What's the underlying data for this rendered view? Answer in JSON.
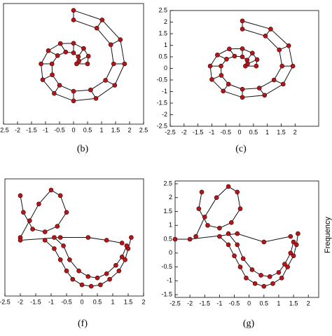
{
  "chart_data": [
    {
      "type": "graph",
      "caption": "(b)",
      "xlim": [
        -2.5,
        2.5
      ],
      "xticks": [
        -2.5,
        -2,
        -1.5,
        -1,
        -0.5,
        0,
        0.5,
        1,
        1.5,
        2,
        2.5
      ],
      "ylim": [
        -2.2,
        2.2
      ],
      "ladder": true,
      "lines": [
        {
          "x": [
            0.5,
            0.53,
            0.36,
            0,
            -0.47,
            -0.9,
            -1.16,
            -1.1,
            -0.69,
            0,
            0.8,
            1.47,
            1.82,
            1.67,
            1.02,
            0
          ],
          "y": [
            0,
            0.28,
            0.56,
            0.75,
            0.74,
            0.48,
            0,
            -0.58,
            -1.08,
            -1.35,
            -1.26,
            -0.78,
            0,
            0.88,
            1.6,
            1.95
          ]
        },
        {
          "x": [
            0.11,
            0.19,
            0.17,
            0,
            -0.28,
            -0.57,
            -0.77,
            -0.76,
            -0.5,
            0,
            0.61,
            1.14,
            1.43,
            1.33,
            0.83,
            0
          ],
          "y": [
            0,
            0.1,
            0.26,
            0.4,
            0.43,
            0.3,
            0,
            -0.4,
            -0.78,
            -1.0,
            -0.95,
            -0.6,
            0,
            0.7,
            1.3,
            1.6
          ]
        }
      ]
    },
    {
      "type": "graph",
      "caption": "(c)",
      "xlim": [
        -2.5,
        2.85
      ],
      "xticks": [
        -2.5,
        -2,
        -1.5,
        -1,
        -0.5,
        0,
        0.5,
        1,
        1.5,
        2
      ],
      "ylim": [
        -2.5,
        2.5
      ],
      "yticks": [
        -2.5,
        -2,
        -1.5,
        -1,
        -0.5,
        0,
        0.5,
        1,
        1.5,
        2,
        2.5
      ],
      "ladder": true,
      "lines": [
        {
          "x": [
            0.6,
            0.63,
            0.46,
            0.1,
            -0.37,
            -0.8,
            -1.06,
            -1.0,
            -0.59,
            0.1,
            0.9,
            1.57,
            1.92,
            1.77,
            1.12,
            0.1
          ],
          "y": [
            0.1,
            0.38,
            0.66,
            0.85,
            0.84,
            0.58,
            0.1,
            -0.48,
            -0.98,
            -1.25,
            -1.16,
            -0.68,
            0.1,
            0.98,
            1.7,
            2.05
          ]
        },
        {
          "x": [
            0.21,
            0.29,
            0.27,
            0.1,
            -0.18,
            -0.47,
            -0.67,
            -0.66,
            -0.4,
            0.1,
            0.71,
            1.24,
            1.53,
            1.43,
            0.93,
            0.1
          ],
          "y": [
            0.1,
            0.2,
            0.36,
            0.5,
            0.53,
            0.4,
            0.1,
            -0.3,
            -0.68,
            -0.9,
            -0.85,
            -0.5,
            0.1,
            0.8,
            1.4,
            1.7
          ]
        }
      ]
    },
    {
      "type": "graph",
      "caption": "(f)",
      "xlim": [
        -2.5,
        2
      ],
      "xticks": [
        -2.5,
        -2,
        -1.5,
        -1,
        -0.5,
        0,
        0.5,
        1,
        1.5,
        2
      ],
      "ylim": [
        -1.5,
        2.7
      ],
      "ladder": false,
      "lines": [
        {
          "x": [
            -2,
            -1.7,
            -1.4,
            -1.0,
            -0.7,
            -0.5,
            -0.8,
            -1.2,
            -1.6,
            -1.9,
            -2.0
          ],
          "y": [
            0.6,
            1.2,
            1.8,
            2.3,
            2.1,
            1.5,
            1.0,
            0.8,
            0.9,
            1.5,
            2.1
          ]
        },
        {
          "x": [
            -1.2,
            -0.9,
            -0.7,
            -0.5,
            -0.3,
            0,
            0.3,
            0.6,
            0.9,
            1.2,
            1.4,
            1.5,
            1.6
          ],
          "y": [
            0.5,
            0.2,
            -0.2,
            -0.6,
            -0.9,
            -1.1,
            -1.15,
            -1.1,
            -0.9,
            -0.6,
            -0.2,
            0.2,
            0.6
          ]
        },
        {
          "x": [
            -0.9,
            -0.6,
            -0.4,
            -0.1,
            0.2,
            0.5,
            0.8,
            1.1,
            1.3,
            1.45
          ],
          "y": [
            0.6,
            0.3,
            -0.2,
            -0.6,
            -0.8,
            -0.85,
            -0.7,
            -0.4,
            -0.1,
            0.3
          ]
        },
        {
          "x": [
            -2,
            -0.7,
            0.2,
            0.8,
            1.3
          ],
          "y": [
            0.5,
            0.6,
            0.6,
            0.5,
            0.4
          ]
        }
      ]
    },
    {
      "type": "graph",
      "caption": "(g)",
      "xlim": [
        -2.5,
        2.35
      ],
      "xticks": [
        -2.5,
        -2,
        -1.5,
        -1,
        -0.5,
        0,
        0.5,
        1,
        1.5,
        2
      ],
      "ylim": [
        -1.6,
        2.6
      ],
      "yticks": [
        -1.5,
        -1,
        -0.5,
        0,
        0.5,
        1,
        1.5,
        2,
        2.5
      ],
      "ladder": false,
      "lines": [
        {
          "x": [
            -1.8,
            -1.5,
            -1.1,
            -0.7,
            -0.4,
            -0.3,
            -0.6,
            -1.0,
            -1.4,
            -1.7,
            -1.6
          ],
          "y": [
            0.6,
            1.3,
            2.0,
            2.4,
            2.2,
            1.6,
            1.1,
            0.9,
            1.0,
            1.6,
            2.2
          ]
        },
        {
          "x": [
            -1.0,
            -0.7,
            -0.5,
            -0.3,
            -0.1,
            0.2,
            0.5,
            0.8,
            1.1,
            1.3,
            1.5,
            1.6,
            1.65
          ],
          "y": [
            0.6,
            0.3,
            -0.1,
            -0.5,
            -0.9,
            -1.1,
            -1.2,
            -1.1,
            -0.9,
            -0.5,
            -0.1,
            0.3,
            0.7
          ]
        },
        {
          "x": [
            -0.7,
            -0.4,
            -0.2,
            0.1,
            0.4,
            0.7,
            1.0,
            1.2,
            1.4,
            1.5
          ],
          "y": [
            0.7,
            0.3,
            -0.2,
            -0.6,
            -0.8,
            -0.85,
            -0.7,
            -0.4,
            0,
            0.4
          ]
        },
        {
          "x": [
            -2.5,
            -2.0,
            -0.4,
            0.5,
            1.4
          ],
          "y": [
            0.5,
            0.5,
            0.7,
            0.4,
            0.6
          ]
        }
      ]
    }
  ],
  "side_label": "Frequency"
}
